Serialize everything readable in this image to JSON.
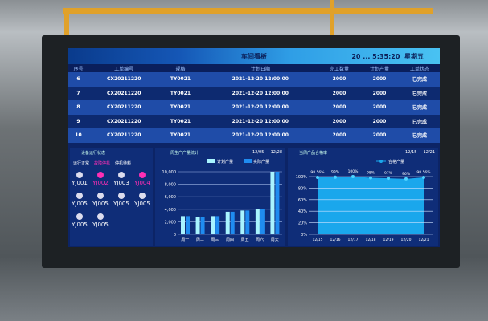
{
  "header": {
    "title": "车间看板",
    "datetime": "20 ... 5:35:20",
    "weekday": "星期五"
  },
  "table": {
    "columns": [
      "序号",
      "工单编号",
      "规格",
      "计划日期",
      "完工数量",
      "计划产量",
      "工单状态"
    ],
    "rows": [
      [
        "6",
        "CX20211220",
        "TY0021",
        "2021-12-20 12:00:00",
        "2000",
        "2000",
        "已完成"
      ],
      [
        "7",
        "CX20211220",
        "TY0021",
        "2021-12-20 12:00:00",
        "2000",
        "2000",
        "已完成"
      ],
      [
        "8",
        "CX20211220",
        "TY0021",
        "2021-12-20 12:00:00",
        "2000",
        "2000",
        "已完成"
      ],
      [
        "9",
        "CX20211220",
        "TY0021",
        "2021-12-20 12:00:00",
        "2000",
        "2000",
        "已完成"
      ],
      [
        "10",
        "CX20211220",
        "TY0021",
        "2021-12-20 12:00:00",
        "2000",
        "2000",
        "已完成"
      ]
    ]
  },
  "devices": {
    "title": "设备运行状态",
    "legend": [
      "运行正常",
      "故障停机",
      "停机待料"
    ],
    "items": [
      {
        "name": "YJ001",
        "status": "normal"
      },
      {
        "name": "YJ002",
        "status": "fault"
      },
      {
        "name": "YJ003",
        "status": "idle"
      },
      {
        "name": "YJ004",
        "status": "fault"
      },
      {
        "name": "YJ005",
        "status": "idle"
      },
      {
        "name": "YJ005",
        "status": "idle"
      },
      {
        "name": "YJ005",
        "status": "idle"
      },
      {
        "name": "YJ005",
        "status": "idle"
      },
      {
        "name": "YJ005",
        "status": "idle"
      },
      {
        "name": "YJ005",
        "status": "idle"
      }
    ],
    "colors": {
      "normal": "#dde3ee",
      "fault": "#ff2fb5",
      "idle": "#dde3ee"
    }
  },
  "chart_data": [
    {
      "type": "bar",
      "title": "一周生产产量统计",
      "range": "12/05 — 12/28",
      "categories": [
        "周一",
        "周二",
        "周三",
        "周四",
        "周五",
        "周六",
        "周天"
      ],
      "series": [
        {
          "name": "计划产量",
          "values": [
            2900,
            2800,
            2900,
            3600,
            3800,
            4000,
            10000
          ],
          "color": "#a8f4ff"
        },
        {
          "name": "实际产量",
          "values": [
            2900,
            2800,
            2900,
            3600,
            3800,
            4000,
            10000
          ],
          "color": "#1f8cf0"
        }
      ],
      "ylim": [
        0,
        10000
      ],
      "yticks": [
        "0",
        "2,000",
        "4,000",
        "6,000",
        "8,000",
        "10,000"
      ],
      "grid": true,
      "legend": "top-right"
    },
    {
      "type": "area",
      "title": "当周产品合格率",
      "range": "12/15 — 12/21",
      "categories": [
        "12/15",
        "12/16",
        "12/17",
        "12/18",
        "12/19",
        "12/20",
        "12/21"
      ],
      "series": [
        {
          "name": "合格产量",
          "values": [
            98.56,
            99,
            100,
            98,
            97,
            96,
            98.56
          ],
          "labels": [
            "98.56%",
            "99%",
            "100%",
            "98%",
            "97%",
            "96%",
            "98.56%"
          ],
          "color": "#1aa7ec"
        }
      ],
      "ylim": [
        0,
        100
      ],
      "yticks": [
        "0%",
        "20%",
        "40%",
        "60%",
        "80%",
        "100%"
      ],
      "grid": true,
      "legend": "top-right"
    }
  ]
}
